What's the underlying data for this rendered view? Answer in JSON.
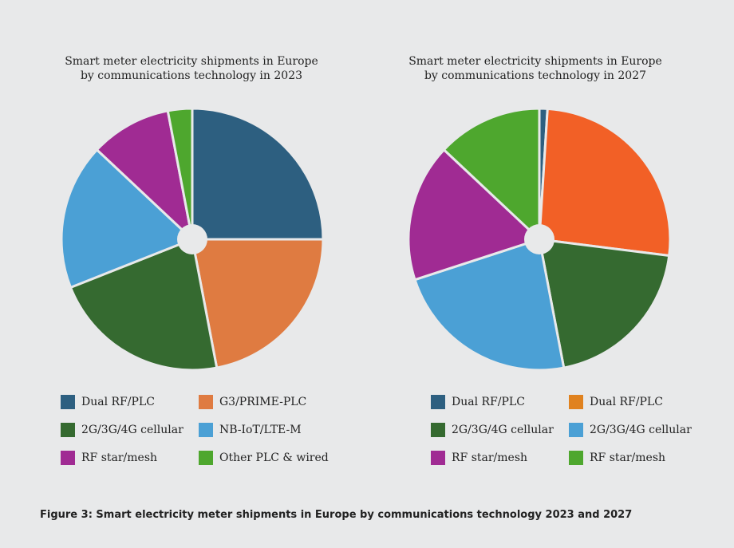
{
  "chart_data": [
    {
      "type": "pie",
      "title_line1": "Smart meter electricity shipments in Europe",
      "title_line2": "by communications technology in 2023",
      "slices": [
        {
          "label": "Dual RF/PLC",
          "value": 25,
          "color": "#2d5f80"
        },
        {
          "label": "G3/PRIME-PLC",
          "value": 22,
          "color": "#df7b41"
        },
        {
          "label": "2G/3G/4G cellular",
          "value": 22,
          "color": "#356a30"
        },
        {
          "label": "NB-IoT/LTE-M",
          "value": 18,
          "color": "#4ba0d5"
        },
        {
          "label": "RF star/mesh",
          "value": 10,
          "color": "#a02b93"
        },
        {
          "label": "Other PLC & wired",
          "value": 3,
          "color": "#4ea72e"
        }
      ],
      "legend": [
        {
          "label": "Dual RF/PLC",
          "color": "#2d5f80"
        },
        {
          "label": "G3/PRIME-PLC",
          "color": "#df7b41"
        },
        {
          "label": "2G/3G/4G cellular",
          "color": "#356a30"
        },
        {
          "label": "NB-IoT/LTE-M",
          "color": "#4ba0d5"
        },
        {
          "label": "RF star/mesh",
          "color": "#a02b93"
        },
        {
          "label": "Other PLC & wired",
          "color": "#4ea72e"
        }
      ]
    },
    {
      "type": "pie",
      "title_line1": "Smart meter electricity shipments in Europe",
      "title_line2": "by communications technology in 2027",
      "slices": [
        {
          "label": "Dual RF/PLC",
          "value": 1,
          "color": "#2d5f80"
        },
        {
          "label": "Dual RF/PLC",
          "value": 26,
          "color": "#f26026"
        },
        {
          "label": "2G/3G/4G cellular",
          "value": 20,
          "color": "#356a30"
        },
        {
          "label": "2G/3G/4G cellular",
          "value": 23,
          "color": "#4ba0d5"
        },
        {
          "label": "RF star/mesh",
          "value": 17,
          "color": "#a02b93"
        },
        {
          "label": "RF star/mesh",
          "value": 13,
          "color": "#4ea72e"
        }
      ],
      "legend": [
        {
          "label": "Dual RF/PLC",
          "color": "#2d5f80"
        },
        {
          "label": "Dual RF/PLC",
          "color": "#e0821f"
        },
        {
          "label": "2G/3G/4G cellular",
          "color": "#356a30"
        },
        {
          "label": "2G/3G/4G cellular",
          "color": "#4ba0d5"
        },
        {
          "label": "RF star/mesh",
          "color": "#a02b93"
        },
        {
          "label": "RF star/mesh",
          "color": "#4ea72e"
        }
      ]
    }
  ],
  "caption": "Figure 3: Smart electricity meter shipments in Europe by communications technology 2023 and 2027"
}
